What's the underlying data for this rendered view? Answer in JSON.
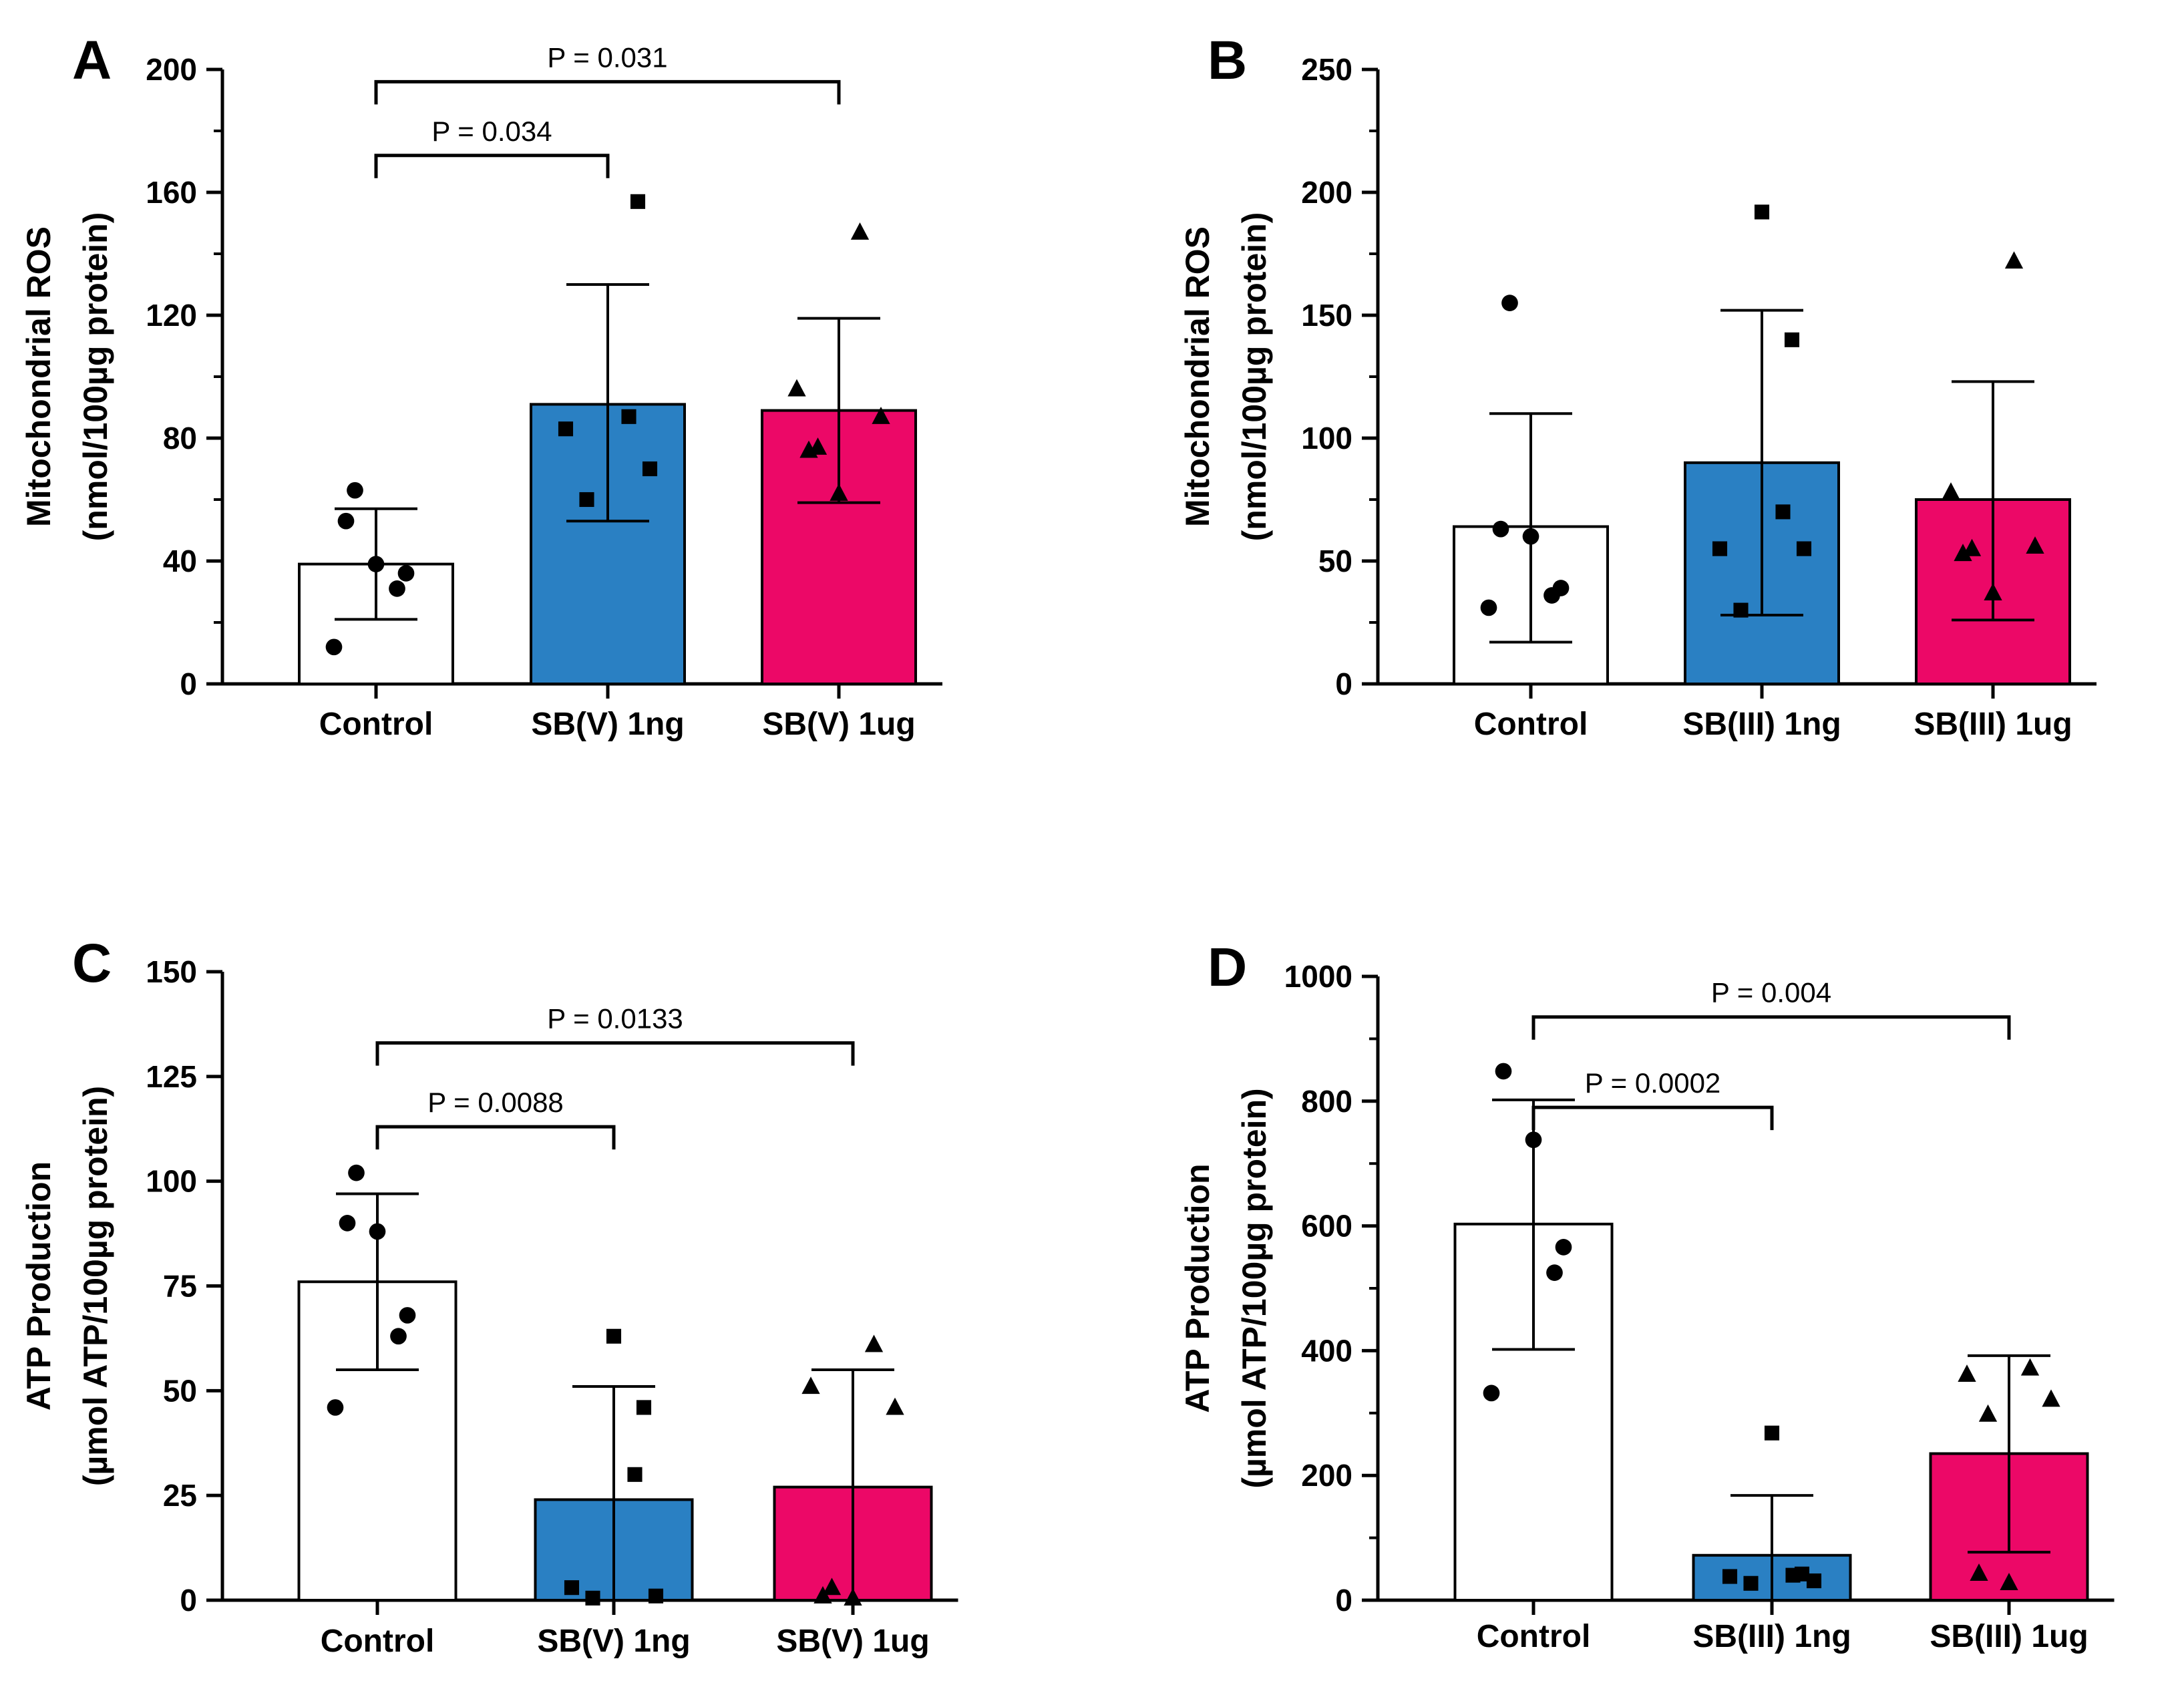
{
  "chart_data": [
    {
      "panel": "A",
      "type": "bar",
      "ylabel": [
        "Mitochondrial  ROS",
        "(nmol/100µg protein)"
      ],
      "categories": [
        "Control",
        "SB(V) 1ng",
        "SB(V) 1ug"
      ],
      "ylim": [
        0,
        200
      ],
      "yticks": [
        0,
        40,
        80,
        120,
        160,
        200
      ],
      "minor_ticks": true,
      "bars": [
        {
          "mean": 39,
          "sd_low": 21,
          "sd_high": 57,
          "fill": "#ffffff",
          "marker": "circle",
          "points": [
            12,
            31,
            36,
            39,
            53,
            63
          ]
        },
        {
          "mean": 91,
          "sd_low": 53,
          "sd_high": 130,
          "fill": "#2a80c3",
          "marker": "square",
          "points": [
            60,
            70,
            83,
            87,
            157
          ]
        },
        {
          "mean": 89,
          "sd_low": 59,
          "sd_high": 119,
          "fill": "#ec0867",
          "marker": "triangle",
          "points": [
            62,
            76,
            77,
            87,
            96,
            147
          ]
        }
      ],
      "comparisons": [
        {
          "from": 0,
          "to": 1,
          "y": 172,
          "label": "P = 0.034"
        },
        {
          "from": 0,
          "to": 2,
          "y": 196,
          "label": "P = 0.031"
        }
      ]
    },
    {
      "panel": "B",
      "type": "bar",
      "ylabel": [
        "Mitochondrial  ROS",
        "(nmol/100µg protein)"
      ],
      "categories": [
        "Control",
        "SB(III) 1ng",
        "SB(III) 1ug"
      ],
      "ylim": [
        0,
        250
      ],
      "yticks": [
        0,
        50,
        100,
        150,
        200,
        250
      ],
      "minor_ticks": true,
      "bars": [
        {
          "mean": 64,
          "sd_low": 17,
          "sd_high": 110,
          "fill": "#ffffff",
          "marker": "circle",
          "points": [
            31,
            36,
            39,
            60,
            63,
            155
          ]
        },
        {
          "mean": 90,
          "sd_low": 28,
          "sd_high": 152,
          "fill": "#2a80c3",
          "marker": "square",
          "points": [
            30,
            55,
            55,
            70,
            140,
            192
          ]
        },
        {
          "mean": 75,
          "sd_low": 26,
          "sd_high": 123,
          "fill": "#ec0867",
          "marker": "triangle",
          "points": [
            37,
            53,
            55,
            56,
            78,
            172
          ]
        }
      ],
      "comparisons": []
    },
    {
      "panel": "C",
      "type": "bar",
      "ylabel": [
        "ATP Production",
        "(µmol ATP/100µg protein)"
      ],
      "categories": [
        "Control",
        "SB(V) 1ng",
        "SB(V) 1ug"
      ],
      "ylim": [
        0,
        150
      ],
      "yticks": [
        0,
        25,
        50,
        75,
        100,
        125,
        150
      ],
      "minor_ticks": false,
      "bars": [
        {
          "mean": 76,
          "sd_low": 55,
          "sd_high": 97,
          "fill": "#ffffff",
          "marker": "circle",
          "points": [
            46,
            63,
            68,
            88,
            90,
            102
          ]
        },
        {
          "mean": 24,
          "sd_low": 0,
          "sd_high": 51,
          "fill": "#2a80c3",
          "marker": "square",
          "points": [
            0.5,
            1,
            3,
            30,
            46,
            63
          ]
        },
        {
          "mean": 27,
          "sd_low": 0,
          "sd_high": 55,
          "fill": "#ec0867",
          "marker": "triangle",
          "points": [
            0.5,
            1,
            3,
            46,
            51,
            61
          ]
        }
      ],
      "comparisons": [
        {
          "from": 0,
          "to": 1,
          "y": 113,
          "label": "P = 0.0088"
        },
        {
          "from": 0,
          "to": 2,
          "y": 133,
          "label": "P = 0.0133"
        }
      ]
    },
    {
      "panel": "D",
      "type": "bar",
      "ylabel": [
        "ATP Production",
        "(µmol ATP/100µg protein)"
      ],
      "categories": [
        "Control",
        "SB(III) 1ng",
        "SB(III) 1ug"
      ],
      "ylim": [
        0,
        1000
      ],
      "yticks": [
        0,
        200,
        400,
        600,
        800,
        1000
      ],
      "minor_ticks": true,
      "bars": [
        {
          "mean": 603,
          "sd_low": 402,
          "sd_high": 802,
          "fill": "#ffffff",
          "marker": "circle",
          "points": [
            332,
            525,
            566,
            738,
            848
          ]
        },
        {
          "mean": 72,
          "sd_low": 0,
          "sd_high": 168,
          "fill": "#2a80c3",
          "marker": "square",
          "points": [
            27,
            31,
            38,
            40,
            42,
            268
          ]
        },
        {
          "mean": 235,
          "sd_low": 77,
          "sd_high": 392,
          "fill": "#ec0867",
          "marker": "triangle",
          "points": [
            28,
            43,
            298,
            322,
            362,
            372
          ]
        }
      ],
      "comparisons": [
        {
          "from": 0,
          "to": 1,
          "y": 790,
          "label": "P = 0.0002"
        },
        {
          "from": 0,
          "to": 2,
          "y": 935,
          "label": "P = 0.004"
        }
      ]
    }
  ]
}
